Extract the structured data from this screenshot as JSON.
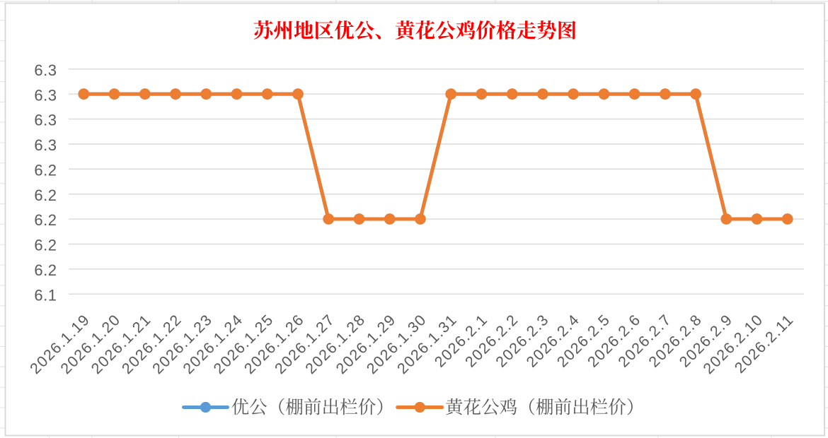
{
  "page": {
    "background": "#FFFFFF"
  },
  "chart_data": {
    "type": "line",
    "title": "苏州地区优公、黄花公鸡价格走势图",
    "title_color": "#FF0000",
    "categories": [
      "2026.1.19",
      "2026.1.20",
      "2026.1.21",
      "2026.1.22",
      "2026.1.23",
      "2026.1.24",
      "2026.1.25",
      "2026.1.26",
      "2026.1.27",
      "2026.1.28",
      "2026.1.29",
      "2026.1.30",
      "2026.1.31",
      "2026.2.1",
      "2026.2.2",
      "2026.2.3",
      "2026.2.4",
      "2026.2.5",
      "2026.2.6",
      "2026.2.7",
      "2026.2.8",
      "2026.2.9",
      "2026.2.10",
      "2026.2.11"
    ],
    "series": [
      {
        "name": "优公（棚前出栏价）",
        "color": "#5B9BD5",
        "values": [
          6.3,
          6.3,
          6.3,
          6.3,
          6.3,
          6.3,
          6.3,
          6.3,
          6.2,
          6.2,
          6.2,
          6.2,
          6.3,
          6.3,
          6.3,
          6.3,
          6.3,
          6.3,
          6.3,
          6.3,
          6.3,
          6.2,
          6.2,
          6.2
        ]
      },
      {
        "name": "黄花公鸡（棚前出栏价）",
        "color": "#ED7D31",
        "values": [
          6.3,
          6.3,
          6.3,
          6.3,
          6.3,
          6.3,
          6.3,
          6.3,
          6.2,
          6.2,
          6.2,
          6.2,
          6.3,
          6.3,
          6.3,
          6.3,
          6.3,
          6.3,
          6.3,
          6.3,
          6.3,
          6.2,
          6.2,
          6.2
        ]
      }
    ],
    "y_axis": {
      "min": 6.14,
      "max": 6.32,
      "step": 0.02,
      "tick_labels_top_to_bottom": [
        "6.3",
        "6.3",
        "6.3",
        "6.3",
        "6.2",
        "6.2",
        "6.2",
        "6.2",
        "6.2",
        "6.1"
      ]
    },
    "x_axis": {
      "label_rotation_deg": 45
    },
    "legend": {
      "position": "bottom"
    },
    "grid": true,
    "gridline_color": "#D9D9D9",
    "axis_label_color": "#595959",
    "chart_border_color": "#D9D9D9"
  }
}
